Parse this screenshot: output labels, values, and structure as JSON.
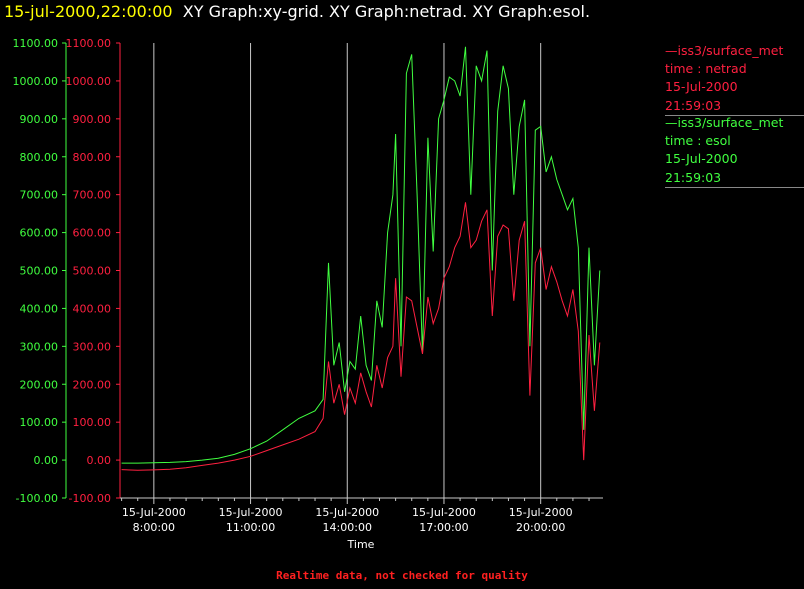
{
  "title": {
    "timestamp": "15-jul-2000,22:00:00",
    "graphs": "XY Graph:xy-grid.  XY Graph:netrad.  XY Graph:esol."
  },
  "legend": [
    {
      "line1": "—iss3/surface_met",
      "line2": "time : netrad",
      "line3": "15-Jul-2000",
      "line4": "21:59:03",
      "color": "#ff2040"
    },
    {
      "line1": "—iss3/surface_met",
      "line2": "time : esol",
      "line3": "15-Jul-2000",
      "line4": "21:59:03",
      "color": "#40ff40"
    }
  ],
  "footer": "Realtime data, not checked for quality",
  "chart_data": {
    "type": "line",
    "title": "XY Graph:xy-grid.  XY Graph:netrad.  XY Graph:esol.",
    "xlabel": "Time",
    "ylabel": "",
    "xlim": [
      "15-Jul-2000 06:57",
      "15-Jul-2000 21:56"
    ],
    "ylim": [
      -100,
      1100
    ],
    "yticks": [
      "-100.00",
      "0.00",
      "100.00",
      "200.00",
      "300.00",
      "400.00",
      "500.00",
      "600.00",
      "700.00",
      "800.00",
      "900.00",
      "1000.00",
      "1100.00"
    ],
    "xticks": [
      {
        "date": "15-Jul-2000",
        "time": "8:00:00",
        "t": "08:00"
      },
      {
        "date": "15-Jul-2000",
        "time": "11:00:00",
        "t": "11:00"
      },
      {
        "date": "15-Jul-2000",
        "time": "14:00:00",
        "t": "14:00"
      },
      {
        "date": "15-Jul-2000",
        "time": "17:00:00",
        "t": "17:00"
      },
      {
        "date": "15-Jul-2000",
        "time": "20:00:00",
        "t": "20:00"
      }
    ],
    "grid": "vertical at x ticks",
    "legend_position": "right",
    "series": [
      {
        "name": "iss3/surface_met time : netrad",
        "color": "#ff2040",
        "points": [
          [
            "07:00",
            -25
          ],
          [
            "07:30",
            -27
          ],
          [
            "08:00",
            -26
          ],
          [
            "08:30",
            -24
          ],
          [
            "09:00",
            -20
          ],
          [
            "09:30",
            -14
          ],
          [
            "10:00",
            -8
          ],
          [
            "10:30",
            0
          ],
          [
            "11:00",
            10
          ],
          [
            "11:30",
            25
          ],
          [
            "12:00",
            40
          ],
          [
            "12:30",
            55
          ],
          [
            "13:00",
            75
          ],
          [
            "13:15",
            110
          ],
          [
            "13:25",
            260
          ],
          [
            "13:35",
            150
          ],
          [
            "13:45",
            200
          ],
          [
            "13:55",
            120
          ],
          [
            "14:05",
            190
          ],
          [
            "14:15",
            150
          ],
          [
            "14:25",
            230
          ],
          [
            "14:35",
            180
          ],
          [
            "14:45",
            140
          ],
          [
            "14:55",
            250
          ],
          [
            "15:05",
            190
          ],
          [
            "15:15",
            270
          ],
          [
            "15:25",
            300
          ],
          [
            "15:30",
            480
          ],
          [
            "15:40",
            220
          ],
          [
            "15:50",
            430
          ],
          [
            "16:00",
            420
          ],
          [
            "16:10",
            350
          ],
          [
            "16:20",
            280
          ],
          [
            "16:30",
            430
          ],
          [
            "16:40",
            360
          ],
          [
            "16:50",
            400
          ],
          [
            "17:00",
            480
          ],
          [
            "17:10",
            510
          ],
          [
            "17:20",
            560
          ],
          [
            "17:30",
            590
          ],
          [
            "17:40",
            680
          ],
          [
            "17:50",
            560
          ],
          [
            "18:00",
            580
          ],
          [
            "18:10",
            630
          ],
          [
            "18:20",
            660
          ],
          [
            "18:30",
            380
          ],
          [
            "18:40",
            590
          ],
          [
            "18:50",
            620
          ],
          [
            "19:00",
            610
          ],
          [
            "19:10",
            420
          ],
          [
            "19:20",
            580
          ],
          [
            "19:30",
            630
          ],
          [
            "19:40",
            170
          ],
          [
            "19:50",
            520
          ],
          [
            "20:00",
            560
          ],
          [
            "20:10",
            450
          ],
          [
            "20:20",
            510
          ],
          [
            "20:30",
            470
          ],
          [
            "20:40",
            420
          ],
          [
            "20:50",
            380
          ],
          [
            "21:00",
            450
          ],
          [
            "21:10",
            340
          ],
          [
            "21:20",
            0
          ],
          [
            "21:30",
            330
          ],
          [
            "21:40",
            130
          ],
          [
            "21:50",
            310
          ]
        ]
      },
      {
        "name": "iss3/surface_met time : esol",
        "color": "#40ff40",
        "points": [
          [
            "07:00",
            -8
          ],
          [
            "07:30",
            -8
          ],
          [
            "08:00",
            -7
          ],
          [
            "08:30",
            -6
          ],
          [
            "09:00",
            -4
          ],
          [
            "09:30",
            0
          ],
          [
            "10:00",
            5
          ],
          [
            "10:30",
            15
          ],
          [
            "11:00",
            30
          ],
          [
            "11:30",
            50
          ],
          [
            "12:00",
            80
          ],
          [
            "12:30",
            110
          ],
          [
            "13:00",
            130
          ],
          [
            "13:15",
            160
          ],
          [
            "13:25",
            520
          ],
          [
            "13:35",
            250
          ],
          [
            "13:45",
            310
          ],
          [
            "13:55",
            180
          ],
          [
            "14:05",
            260
          ],
          [
            "14:15",
            240
          ],
          [
            "14:25",
            380
          ],
          [
            "14:35",
            250
          ],
          [
            "14:45",
            210
          ],
          [
            "14:55",
            420
          ],
          [
            "15:05",
            350
          ],
          [
            "15:15",
            600
          ],
          [
            "15:25",
            700
          ],
          [
            "15:30",
            860
          ],
          [
            "15:40",
            300
          ],
          [
            "15:50",
            1020
          ],
          [
            "16:00",
            1070
          ],
          [
            "16:10",
            700
          ],
          [
            "16:20",
            280
          ],
          [
            "16:30",
            850
          ],
          [
            "16:40",
            550
          ],
          [
            "16:50",
            900
          ],
          [
            "17:00",
            950
          ],
          [
            "17:10",
            1010
          ],
          [
            "17:20",
            1000
          ],
          [
            "17:30",
            960
          ],
          [
            "17:40",
            1090
          ],
          [
            "17:50",
            700
          ],
          [
            "18:00",
            1040
          ],
          [
            "18:10",
            1000
          ],
          [
            "18:20",
            1080
          ],
          [
            "18:30",
            500
          ],
          [
            "18:40",
            920
          ],
          [
            "18:50",
            1040
          ],
          [
            "19:00",
            980
          ],
          [
            "19:10",
            700
          ],
          [
            "19:20",
            880
          ],
          [
            "19:30",
            950
          ],
          [
            "19:40",
            300
          ],
          [
            "19:50",
            870
          ],
          [
            "20:00",
            880
          ],
          [
            "20:10",
            760
          ],
          [
            "20:20",
            800
          ],
          [
            "20:30",
            740
          ],
          [
            "20:40",
            700
          ],
          [
            "20:50",
            660
          ],
          [
            "21:00",
            690
          ],
          [
            "21:10",
            560
          ],
          [
            "21:20",
            80
          ],
          [
            "21:30",
            560
          ],
          [
            "21:40",
            250
          ],
          [
            "21:50",
            500
          ]
        ]
      }
    ]
  }
}
